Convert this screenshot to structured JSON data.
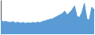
{
  "chart_data": {
    "type": "area",
    "values": [
      55,
      48,
      50,
      47,
      46,
      49,
      44,
      47,
      43,
      46,
      42,
      45,
      43,
      46,
      44,
      47,
      45,
      50,
      52,
      55,
      58,
      60,
      65,
      70,
      75,
      80,
      90,
      75,
      85,
      95,
      110,
      70,
      65,
      85,
      120,
      60,
      55,
      105,
      95
    ],
    "color": "#5b9bd5",
    "ylim": [
      0,
      130
    ],
    "grid": false,
    "tick_labels": false
  }
}
